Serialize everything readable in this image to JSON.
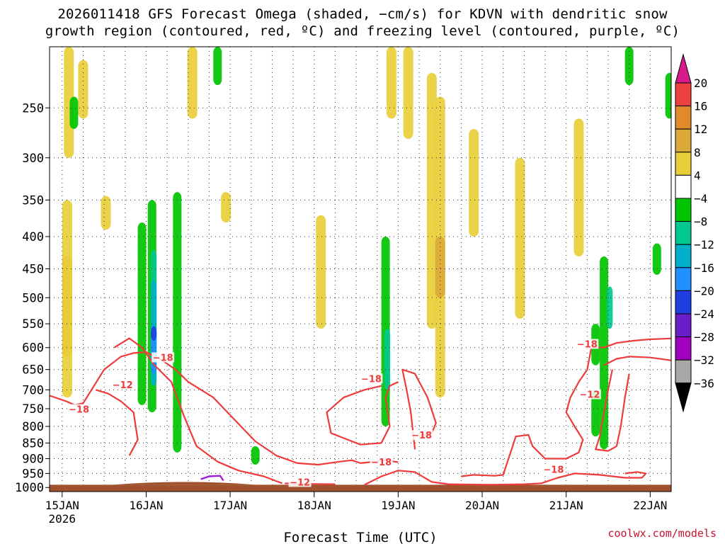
{
  "title": {
    "line1": "2026011418 GFS Forecast Omega (shaded, −cm/s) for KDVN with dendritic snow",
    "line2": "growth region (contoured, red, ºC) and freezing level (contoured, purple, ºC)"
  },
  "credit": "coolwx.com/models",
  "chart_data": {
    "type": "heatmap",
    "title": "2026011418 GFS Forecast Omega (shaded, −cm/s) for KDVN with dendritic snow growth region (contoured, red, ºC) and freezing level (contoured, purple, ºC)",
    "xlabel": "Forecast Time (UTC)",
    "ylabel": "",
    "x_ticks": [
      "15JAN",
      "16JAN",
      "17JAN",
      "18JAN",
      "19JAN",
      "20JAN",
      "21JAN",
      "22JAN"
    ],
    "x_tick_sub": "2026",
    "y_ticks": [
      250,
      300,
      350,
      400,
      450,
      500,
      550,
      600,
      650,
      700,
      750,
      800,
      850,
      900,
      950,
      1000
    ],
    "y_scale": "log-pressure",
    "xlim_days": [
      14.85,
      22.25
    ],
    "ylim": [
      200,
      1015
    ],
    "grid": true,
    "colorbar": {
      "labels": [
        "20",
        "16",
        "12",
        "8",
        "4",
        "−4",
        "−8",
        "−12",
        "−16",
        "−20",
        "−24",
        "−28",
        "−32",
        "−36"
      ],
      "colors": [
        "#ffffff",
        "#e8cf3a",
        "#dba83a",
        "#e08a2a",
        "#ec4040",
        "#00c400",
        "#00c890",
        "#00b0c8",
        "#1e90ff",
        "#1f3fe0",
        "#6a1ec8",
        "#a000c0",
        "#a8a8a8"
      ],
      "cap_top": "#d81b8c",
      "cap_bottom": "#000000"
    },
    "omega_blobs": [
      {
        "t": 15.06,
        "p0": 430,
        "p1": 620,
        "v": 8
      },
      {
        "t": 15.06,
        "p0": 350,
        "p1": 720,
        "v": 4
      },
      {
        "t": 15.08,
        "p0": 200,
        "p1": 300,
        "v": 4
      },
      {
        "t": 15.25,
        "p0": 210,
        "p1": 260,
        "v": 4
      },
      {
        "t": 15.14,
        "p0": 240,
        "p1": 270,
        "v": -8
      },
      {
        "t": 15.52,
        "p0": 345,
        "p1": 390,
        "v": 4
      },
      {
        "t": 15.95,
        "p0": 380,
        "p1": 740,
        "v": -8
      },
      {
        "t": 16.07,
        "p0": 350,
        "p1": 760,
        "v": -8
      },
      {
        "t": 16.09,
        "p0": 420,
        "p1": 660,
        "v": -12
      },
      {
        "t": 16.09,
        "p0": 470,
        "p1": 690,
        "v": -16
      },
      {
        "t": 16.09,
        "p0": 555,
        "p1": 660,
        "v": -20
      },
      {
        "t": 16.09,
        "p0": 555,
        "p1": 585,
        "v": -24
      },
      {
        "t": 16.37,
        "p0": 340,
        "p1": 880,
        "v": -8
      },
      {
        "t": 16.55,
        "p0": 200,
        "p1": 260,
        "v": 4
      },
      {
        "t": 16.85,
        "p0": 200,
        "p1": 230,
        "v": -8
      },
      {
        "t": 16.95,
        "p0": 340,
        "p1": 380,
        "v": 4
      },
      {
        "t": 17.3,
        "p0": 860,
        "p1": 920,
        "v": -8
      },
      {
        "t": 18.08,
        "p0": 370,
        "p1": 560,
        "v": 4
      },
      {
        "t": 18.85,
        "p0": 400,
        "p1": 800,
        "v": -8
      },
      {
        "t": 18.87,
        "p0": 560,
        "p1": 700,
        "v": -12
      },
      {
        "t": 18.92,
        "p0": 200,
        "p1": 260,
        "v": 4
      },
      {
        "t": 19.12,
        "p0": 200,
        "p1": 280,
        "v": 4
      },
      {
        "t": 19.4,
        "p0": 220,
        "p1": 560,
        "v": 4
      },
      {
        "t": 19.5,
        "p0": 240,
        "p1": 720,
        "v": 4
      },
      {
        "t": 19.5,
        "p0": 400,
        "p1": 500,
        "v": 8
      },
      {
        "t": 19.9,
        "p0": 270,
        "p1": 400,
        "v": 4
      },
      {
        "t": 20.45,
        "p0": 300,
        "p1": 540,
        "v": 4
      },
      {
        "t": 21.15,
        "p0": 260,
        "p1": 430,
        "v": 4
      },
      {
        "t": 21.35,
        "p0": 550,
        "p1": 640,
        "v": -8
      },
      {
        "t": 21.35,
        "p0": 700,
        "p1": 830,
        "v": -8
      },
      {
        "t": 21.45,
        "p0": 430,
        "p1": 870,
        "v": -8
      },
      {
        "t": 21.52,
        "p0": 480,
        "p1": 560,
        "v": -12
      },
      {
        "t": 21.75,
        "p0": 200,
        "p1": 230,
        "v": -8
      },
      {
        "t": 22.08,
        "p0": 410,
        "p1": 460,
        "v": -8
      },
      {
        "t": 22.23,
        "p0": 220,
        "p1": 260,
        "v": -8
      }
    ],
    "dgz_contours": [
      {
        "label": "−12",
        "label_t": 15.72,
        "label_p": 690,
        "points": [
          [
            15.62,
            600
          ],
          [
            15.8,
            580
          ],
          [
            15.95,
            600
          ],
          [
            16.1,
            640
          ],
          [
            16.3,
            680
          ],
          [
            16.45,
            770
          ],
          [
            16.6,
            860
          ],
          [
            16.85,
            910
          ],
          [
            17.1,
            940
          ],
          [
            17.4,
            960
          ],
          [
            17.62,
            985
          ]
        ]
      },
      {
        "label": "−12",
        "label_t": 17.83,
        "label_p": 985,
        "points": [
          [
            17.65,
            985
          ],
          [
            17.95,
            987
          ],
          [
            18.25,
            988
          ]
        ]
      },
      {
        "label": "−18",
        "label_t": 16.2,
        "label_p": 625,
        "points": [
          [
            14.85,
            715
          ],
          [
            15.05,
            730
          ],
          [
            15.15,
            740
          ],
          [
            15.25,
            735
          ],
          [
            15.35,
            700
          ],
          [
            15.5,
            650
          ],
          [
            15.7,
            620
          ],
          [
            15.85,
            612
          ],
          [
            16.0,
            610
          ],
          [
            16.2,
            630
          ],
          [
            16.35,
            650
          ],
          [
            16.5,
            680
          ],
          [
            16.8,
            720
          ],
          [
            17.05,
            780
          ],
          [
            17.3,
            845
          ],
          [
            17.55,
            890
          ],
          [
            17.8,
            915
          ],
          [
            18.05,
            920
          ],
          [
            18.3,
            910
          ],
          [
            18.45,
            905
          ],
          [
            18.55,
            915
          ]
        ]
      },
      {
        "label": "−18",
        "label_t": 18.8,
        "label_p": 915,
        "points": [
          [
            18.55,
            915
          ],
          [
            18.65,
            912
          ],
          [
            18.85,
            905
          ],
          [
            19.0,
            912
          ]
        ]
      },
      {
        "label": "−18",
        "label_t": 15.2,
        "label_p": 755,
        "points": [
          [
            15.8,
            890
          ],
          [
            15.9,
            840
          ],
          [
            15.85,
            760
          ],
          [
            15.7,
            730
          ],
          [
            15.55,
            710
          ],
          [
            15.4,
            700
          ]
        ]
      },
      {
        "label": "−18",
        "label_t": 18.68,
        "label_p": 675,
        "points": [
          [
            18.8,
            690
          ],
          [
            18.6,
            700
          ],
          [
            18.35,
            720
          ],
          [
            18.15,
            760
          ],
          [
            18.2,
            820
          ],
          [
            18.55,
            855
          ],
          [
            18.8,
            850
          ],
          [
            18.9,
            800
          ],
          [
            18.85,
            720
          ],
          [
            18.9,
            690
          ],
          [
            19.0,
            680
          ]
        ]
      },
      {
        "label": "−18",
        "label_t": 19.28,
        "label_p": 830,
        "points": [
          [
            19.2,
            870
          ],
          [
            19.15,
            760
          ],
          [
            19.1,
            700
          ],
          [
            19.05,
            650
          ],
          [
            19.2,
            660
          ],
          [
            19.35,
            720
          ],
          [
            19.45,
            790
          ],
          [
            19.4,
            820
          ],
          [
            19.25,
            830
          ]
        ]
      },
      {
        "label": "−18",
        "label_t": 20.85,
        "label_p": 940,
        "points": [
          [
            18.6,
            990
          ],
          [
            18.8,
            960
          ],
          [
            19.0,
            940
          ],
          [
            19.2,
            945
          ],
          [
            19.4,
            980
          ],
          [
            19.6,
            988
          ],
          [
            20.1,
            990
          ],
          [
            20.5,
            988
          ],
          [
            20.7,
            985
          ],
          [
            20.9,
            965
          ],
          [
            21.1,
            950
          ],
          [
            21.4,
            955
          ],
          [
            21.7,
            965
          ],
          [
            21.9,
            965
          ],
          [
            21.95,
            950
          ],
          [
            21.85,
            945
          ],
          [
            21.7,
            950
          ]
        ]
      },
      {
        "label": "",
        "label_t": 0,
        "label_p": 0,
        "points": [
          [
            19.75,
            960
          ],
          [
            19.9,
            955
          ],
          [
            20.15,
            958
          ],
          [
            20.25,
            955
          ],
          [
            20.35,
            870
          ],
          [
            20.4,
            830
          ],
          [
            20.55,
            825
          ],
          [
            20.6,
            860
          ],
          [
            20.75,
            900
          ],
          [
            21.0,
            900
          ],
          [
            21.15,
            880
          ],
          [
            21.2,
            840
          ],
          [
            21.1,
            800
          ],
          [
            21.0,
            760
          ],
          [
            21.05,
            720
          ],
          [
            21.15,
            680
          ],
          [
            21.25,
            650
          ],
          [
            21.3,
            600
          ],
          [
            21.45,
            600
          ],
          [
            21.6,
            590
          ],
          [
            21.8,
            585
          ],
          [
            22.0,
            582
          ],
          [
            22.3,
            580
          ]
        ]
      },
      {
        "label": "−18",
        "label_t": 21.25,
        "label_p": 595,
        "points": [
          [
            21.45,
            640
          ],
          [
            21.6,
            625
          ],
          [
            21.75,
            620
          ],
          [
            22.0,
            622
          ],
          [
            22.3,
            630
          ]
        ]
      },
      {
        "label": "−12",
        "label_t": 21.28,
        "label_p": 715,
        "points": [
          [
            21.55,
            650
          ],
          [
            21.5,
            700
          ],
          [
            21.45,
            760
          ],
          [
            21.4,
            830
          ],
          [
            21.35,
            870
          ],
          [
            21.5,
            875
          ],
          [
            21.6,
            860
          ],
          [
            21.65,
            800
          ],
          [
            21.7,
            720
          ],
          [
            21.75,
            660
          ]
        ]
      }
    ],
    "freezing_contour": {
      "points": [
        [
          16.65,
          970
        ],
        [
          16.75,
          960
        ],
        [
          16.88,
          958
        ],
        [
          16.92,
          975
        ]
      ]
    },
    "terrain_color": "#a0522d"
  }
}
